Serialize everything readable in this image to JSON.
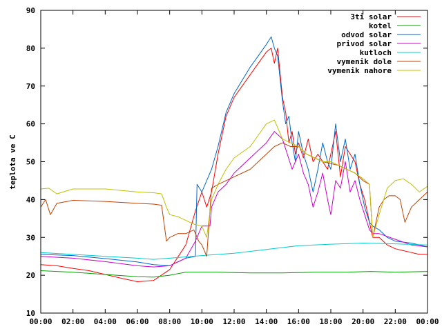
{
  "chart_data": {
    "type": "line",
    "title": "",
    "xlabel": "",
    "ylabel": "teplota ve C",
    "xlim": [
      0,
      24
    ],
    "ylim": [
      10,
      90
    ],
    "grid": false,
    "legend_position": "top-right",
    "x_tick_labels": [
      "00:00",
      "02:00",
      "04:00",
      "06:00",
      "08:00",
      "10:00",
      "12:00",
      "14:00",
      "16:00",
      "18:00",
      "20:00",
      "22:00",
      "00:00"
    ],
    "y_tick_labels": [
      "10",
      "20",
      "30",
      "40",
      "50",
      "60",
      "70",
      "80",
      "90"
    ],
    "series": [
      {
        "name": "3ti solar",
        "color": "#ff0000",
        "points": [
          [
            0,
            22.8
          ],
          [
            1,
            22.5
          ],
          [
            2,
            21.8
          ],
          [
            3,
            21.2
          ],
          [
            4,
            20.2
          ],
          [
            5,
            19.2
          ],
          [
            6,
            18.3
          ],
          [
            7,
            18.6
          ],
          [
            8,
            21.5
          ],
          [
            9,
            28
          ],
          [
            9.6,
            37
          ],
          [
            10,
            42
          ],
          [
            10.3,
            38
          ],
          [
            10.6,
            42
          ],
          [
            11,
            52
          ],
          [
            11.5,
            62
          ],
          [
            12,
            67
          ],
          [
            13,
            73
          ],
          [
            13.5,
            76
          ],
          [
            14,
            79
          ],
          [
            14.3,
            80
          ],
          [
            14.5,
            76
          ],
          [
            14.7,
            80
          ],
          [
            15,
            67
          ],
          [
            15.2,
            63
          ],
          [
            15.4,
            55
          ],
          [
            15.6,
            58
          ],
          [
            15.8,
            52
          ],
          [
            16,
            55
          ],
          [
            16.3,
            51
          ],
          [
            16.6,
            56
          ],
          [
            16.9,
            50
          ],
          [
            17.2,
            52
          ],
          [
            17.5,
            50
          ],
          [
            17.8,
            48
          ],
          [
            18,
            52
          ],
          [
            18.3,
            58
          ],
          [
            18.6,
            46
          ],
          [
            18.9,
            54
          ],
          [
            19.2,
            52
          ],
          [
            19.5,
            50
          ],
          [
            19.8,
            44
          ],
          [
            20.1,
            40
          ],
          [
            20.4,
            34
          ],
          [
            20.6,
            30
          ],
          [
            21,
            30
          ],
          [
            21.5,
            28
          ],
          [
            22,
            27
          ],
          [
            22.5,
            26.5
          ],
          [
            23,
            26
          ],
          [
            23.5,
            25.5
          ],
          [
            24,
            25.5
          ]
        ]
      },
      {
        "name": "kotel",
        "color": "#00a000",
        "points": [
          [
            0,
            21.2
          ],
          [
            2,
            20.8
          ],
          [
            4,
            20.2
          ],
          [
            6,
            19.6
          ],
          [
            7,
            19.5
          ],
          [
            8,
            20
          ],
          [
            9,
            20.8
          ],
          [
            11,
            20.8
          ],
          [
            13,
            20.6
          ],
          [
            15,
            20.6
          ],
          [
            17,
            20.8
          ],
          [
            19,
            20.8
          ],
          [
            20.5,
            21
          ],
          [
            22,
            20.8
          ],
          [
            24,
            21
          ]
        ]
      },
      {
        "name": "odvod solar",
        "color": "#0066cc",
        "points": [
          [
            0,
            25.5
          ],
          [
            2,
            25.2
          ],
          [
            4,
            24.4
          ],
          [
            6,
            23.5
          ],
          [
            7,
            22.8
          ],
          [
            8,
            22.5
          ],
          [
            9,
            24.5
          ],
          [
            9.6,
            25
          ],
          [
            9.7,
            44
          ],
          [
            10,
            42
          ],
          [
            10.3,
            45
          ],
          [
            10.6,
            48
          ],
          [
            11,
            54
          ],
          [
            11.5,
            63
          ],
          [
            12,
            68
          ],
          [
            13,
            75
          ],
          [
            13.5,
            78
          ],
          [
            14,
            81
          ],
          [
            14.3,
            83
          ],
          [
            14.5,
            80
          ],
          [
            14.7,
            78
          ],
          [
            15,
            66
          ],
          [
            15.2,
            60
          ],
          [
            15.4,
            62
          ],
          [
            15.6,
            55
          ],
          [
            15.8,
            50
          ],
          [
            16,
            58
          ],
          [
            16.3,
            52
          ],
          [
            16.6,
            48
          ],
          [
            16.9,
            42
          ],
          [
            17.2,
            48
          ],
          [
            17.5,
            55
          ],
          [
            17.8,
            50
          ],
          [
            18,
            48
          ],
          [
            18.3,
            60
          ],
          [
            18.6,
            50
          ],
          [
            18.9,
            56
          ],
          [
            19.2,
            48
          ],
          [
            19.5,
            52
          ],
          [
            19.8,
            44
          ],
          [
            20.1,
            38
          ],
          [
            20.4,
            34
          ],
          [
            20.6,
            33
          ],
          [
            21,
            32
          ],
          [
            21.5,
            30
          ],
          [
            22,
            29
          ],
          [
            23,
            28.5
          ],
          [
            24,
            27.5
          ]
        ]
      },
      {
        "name": "privod solar",
        "color": "#cc00cc",
        "points": [
          [
            0,
            25
          ],
          [
            2,
            24.5
          ],
          [
            4,
            23.6
          ],
          [
            6,
            22.5
          ],
          [
            7,
            22.2
          ],
          [
            8,
            22.5
          ],
          [
            9,
            24.5
          ],
          [
            9.6,
            29
          ],
          [
            10,
            33
          ],
          [
            10.5,
            33
          ],
          [
            10.6,
            38
          ],
          [
            11,
            42
          ],
          [
            11.5,
            44
          ],
          [
            12,
            47
          ],
          [
            13,
            51
          ],
          [
            14,
            55
          ],
          [
            14.5,
            58
          ],
          [
            15,
            56
          ],
          [
            15.3,
            52
          ],
          [
            15.6,
            48
          ],
          [
            16,
            52
          ],
          [
            16.3,
            47
          ],
          [
            16.6,
            44
          ],
          [
            16.9,
            38
          ],
          [
            17.2,
            42
          ],
          [
            17.5,
            47
          ],
          [
            17.8,
            40
          ],
          [
            18,
            36
          ],
          [
            18.3,
            45
          ],
          [
            18.6,
            43
          ],
          [
            18.9,
            50
          ],
          [
            19.2,
            42
          ],
          [
            19.5,
            45
          ],
          [
            19.8,
            40
          ],
          [
            20.1,
            36
          ],
          [
            20.4,
            32
          ],
          [
            20.6,
            31
          ],
          [
            21,
            31
          ],
          [
            22,
            29.5
          ],
          [
            23,
            28
          ],
          [
            24,
            27.5
          ]
        ]
      },
      {
        "name": "kutloch",
        "color": "#00cccc",
        "points": [
          [
            0,
            26
          ],
          [
            2,
            25.5
          ],
          [
            4,
            25
          ],
          [
            6,
            24.5
          ],
          [
            7,
            24.2
          ],
          [
            8,
            24.5
          ],
          [
            10,
            25.2
          ],
          [
            12,
            25.8
          ],
          [
            14,
            26.8
          ],
          [
            16,
            27.8
          ],
          [
            18,
            28.2
          ],
          [
            20,
            28.5
          ],
          [
            22,
            28.3
          ],
          [
            24,
            28
          ]
        ]
      },
      {
        "name": "vymenik dole",
        "color": "#c04000",
        "points": [
          [
            0,
            38
          ],
          [
            0.3,
            40
          ],
          [
            0.6,
            36
          ],
          [
            1,
            39
          ],
          [
            2,
            39.8
          ],
          [
            4,
            39.5
          ],
          [
            6,
            39
          ],
          [
            7,
            38.8
          ],
          [
            7.5,
            38.5
          ],
          [
            7.8,
            29
          ],
          [
            8,
            30
          ],
          [
            8.5,
            31
          ],
          [
            9,
            31
          ],
          [
            9.5,
            32
          ],
          [
            9.8,
            29
          ],
          [
            10,
            28
          ],
          [
            10.3,
            25
          ],
          [
            10.6,
            43
          ],
          [
            11,
            44
          ],
          [
            11.5,
            45
          ],
          [
            12,
            46
          ],
          [
            13,
            48
          ],
          [
            14,
            52
          ],
          [
            14.5,
            54
          ],
          [
            15,
            55
          ],
          [
            15.5,
            54
          ],
          [
            16,
            54
          ],
          [
            16.5,
            52
          ],
          [
            17,
            51
          ],
          [
            17.5,
            50
          ],
          [
            18,
            49.5
          ],
          [
            18.5,
            49
          ],
          [
            19,
            48
          ],
          [
            19.5,
            47
          ],
          [
            20,
            45
          ],
          [
            20.4,
            44
          ],
          [
            20.6,
            30
          ],
          [
            21,
            38
          ],
          [
            21.3,
            40
          ],
          [
            21.6,
            41
          ],
          [
            22,
            41
          ],
          [
            22.3,
            40
          ],
          [
            22.6,
            34
          ],
          [
            23,
            38
          ],
          [
            23.5,
            40
          ],
          [
            24,
            42
          ]
        ]
      },
      {
        "name": "vymenik nahore",
        "color": "#c0c000",
        "points": [
          [
            0,
            42.8
          ],
          [
            0.5,
            43
          ],
          [
            1,
            41.5
          ],
          [
            2,
            42.8
          ],
          [
            4,
            42.8
          ],
          [
            6,
            42
          ],
          [
            7,
            41.8
          ],
          [
            7.5,
            41.5
          ],
          [
            7.8,
            38
          ],
          [
            8,
            36
          ],
          [
            8.5,
            35.5
          ],
          [
            9,
            34.5
          ],
          [
            9.5,
            33.5
          ],
          [
            10,
            33
          ],
          [
            10.3,
            30
          ],
          [
            10.6,
            40
          ],
          [
            11,
            44
          ],
          [
            11.5,
            48
          ],
          [
            12,
            51
          ],
          [
            13,
            54
          ],
          [
            14,
            60
          ],
          [
            14.5,
            61
          ],
          [
            15,
            56
          ],
          [
            15.5,
            55
          ],
          [
            16,
            54
          ],
          [
            16.5,
            52
          ],
          [
            17,
            51
          ],
          [
            17.5,
            50
          ],
          [
            18,
            50
          ],
          [
            18.5,
            49
          ],
          [
            19,
            48
          ],
          [
            19.5,
            47
          ],
          [
            20,
            45.5
          ],
          [
            20.4,
            44
          ],
          [
            20.6,
            30
          ],
          [
            21,
            36
          ],
          [
            21.5,
            43
          ],
          [
            22,
            45
          ],
          [
            22.5,
            45.5
          ],
          [
            23,
            44
          ],
          [
            23.5,
            42
          ],
          [
            24,
            43.5
          ]
        ]
      }
    ]
  }
}
